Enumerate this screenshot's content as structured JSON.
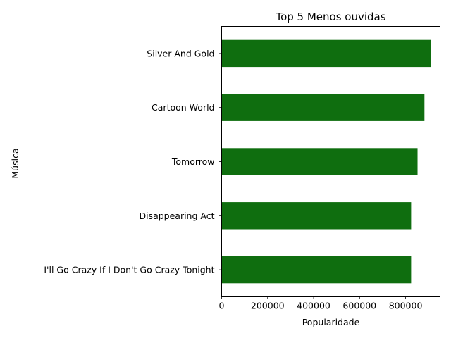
{
  "chart_data": {
    "type": "bar",
    "orientation": "horizontal",
    "title": "Top 5 Menos ouvidas",
    "xlabel": "Popularidade",
    "ylabel": "Música",
    "categories": [
      "I'll Go Crazy If I Don't Go Crazy Tonight",
      "Disappearing Act",
      "Tomorrow",
      "Cartoon World",
      "Silver And Gold"
    ],
    "values": [
      824000,
      824000,
      852000,
      882000,
      910000
    ],
    "xlim": [
      0,
      950000
    ],
    "xticks": [
      0,
      200000,
      400000,
      600000,
      800000
    ],
    "xtick_labels": [
      "0",
      "200000",
      "400000",
      "600000",
      "800000"
    ],
    "bar_color": "#0f6e0f",
    "grid": false,
    "legend": "none"
  }
}
